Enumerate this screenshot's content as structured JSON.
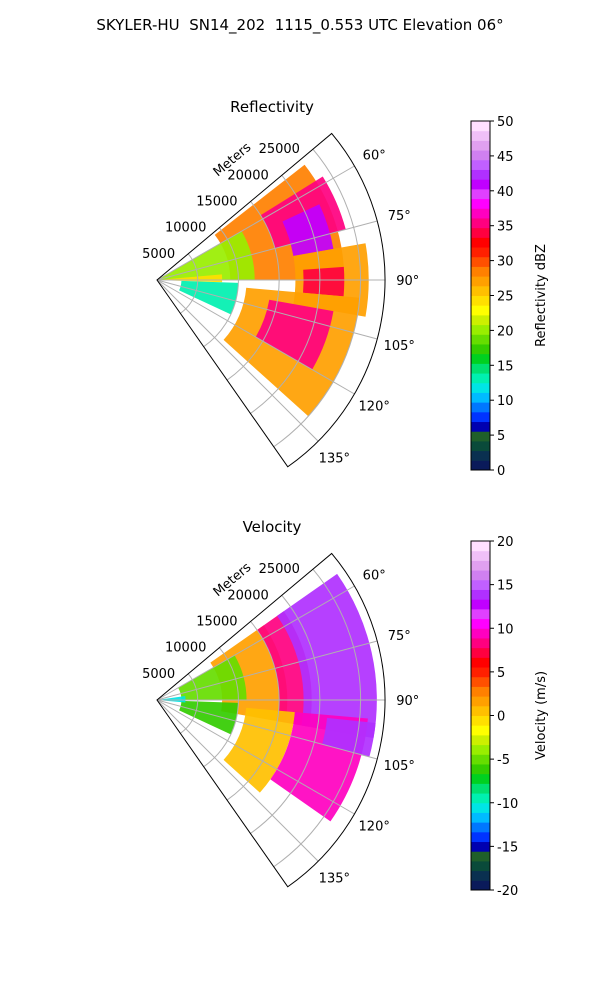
{
  "figure": {
    "title": "SKYLER-HU  SN14_202  1115_0.553 UTC Elevation 06°"
  },
  "chart_data": [
    {
      "type": "heatmap",
      "projection": "polar-sector",
      "title": "Reflectivity",
      "range_label": "Meters",
      "range_ticks": [
        5000,
        10000,
        15000,
        20000,
        25000
      ],
      "range_lim": [
        0,
        28000
      ],
      "azimuth_lim": [
        50,
        145
      ],
      "azimuth_ticks": [
        "60°",
        "75°",
        "90°",
        "105°",
        "120°",
        "135°"
      ],
      "azimuth_tick_values": [
        60,
        75,
        90,
        105,
        120,
        135
      ],
      "grid": true,
      "colorbar": {
        "label": "Reflectivity dBZ",
        "min": 0,
        "max": 50,
        "ticks": [
          0,
          5,
          10,
          15,
          20,
          25,
          30,
          35,
          40,
          45,
          50
        ],
        "colors": [
          "#0a1a5a",
          "#0a3050",
          "#0a4a3a",
          "#1f5f2a",
          "#0000b0",
          "#0033ff",
          "#0077ff",
          "#00bbff",
          "#00e5e5",
          "#00f0b0",
          "#00e070",
          "#00d020",
          "#33cc00",
          "#66dd00",
          "#99ee00",
          "#ccf000",
          "#ffff00",
          "#ffe000",
          "#ffc000",
          "#ffa000",
          "#ff8000",
          "#ff5000",
          "#ff2000",
          "#ff0000",
          "#ff0040",
          "#ff0080",
          "#ff00c0",
          "#ff00ff",
          "#e040ff",
          "#c000ff",
          "#b030ff",
          "#c060ff",
          "#d080f0",
          "#e0a0f0",
          "#f0c0f8",
          "#ffe0ff"
        ]
      },
      "cells": [
        {
          "az_min": 52,
          "az_max": 90,
          "r_min": 9000,
          "r_max": 23000,
          "value": 28
        },
        {
          "az_min": 58,
          "az_max": 75,
          "r_min": 15000,
          "r_max": 24000,
          "value": 36
        },
        {
          "az_min": 65,
          "az_max": 80,
          "r_min": 17000,
          "r_max": 22000,
          "value": 41
        },
        {
          "az_min": 80,
          "az_max": 100,
          "r_min": 17000,
          "r_max": 26000,
          "value": 27
        },
        {
          "az_min": 86,
          "az_max": 95,
          "r_min": 18000,
          "r_max": 23000,
          "value": 34
        },
        {
          "az_min": 95,
          "az_max": 132,
          "r_min": 11000,
          "r_max": 25000,
          "value": 27
        },
        {
          "az_min": 100,
          "az_max": 120,
          "r_min": 14000,
          "r_max": 22000,
          "value": 36
        },
        {
          "az_min": 60,
          "az_max": 90,
          "r_min": 0,
          "r_max": 12000,
          "value": 20
        },
        {
          "az_min": 85,
          "az_max": 92,
          "r_min": 0,
          "r_max": 8000,
          "value": 24
        },
        {
          "az_min": 92,
          "az_max": 115,
          "r_min": 3000,
          "r_max": 10000,
          "value": 13
        }
      ]
    },
    {
      "type": "heatmap",
      "projection": "polar-sector",
      "title": "Velocity",
      "range_label": "Meters",
      "range_ticks": [
        5000,
        10000,
        15000,
        20000,
        25000
      ],
      "range_lim": [
        0,
        28000
      ],
      "azimuth_lim": [
        50,
        145
      ],
      "azimuth_ticks": [
        "60°",
        "75°",
        "90°",
        "105°",
        "120°",
        "135°"
      ],
      "azimuth_tick_values": [
        60,
        75,
        90,
        105,
        120,
        135
      ],
      "grid": true,
      "colorbar": {
        "label": "Velocity (m/s)",
        "min": -20,
        "max": 20,
        "ticks": [
          -20,
          -15,
          -10,
          -5,
          0,
          5,
          10,
          15,
          20
        ],
        "colors": [
          "#0a1a5a",
          "#0a3050",
          "#0a4a3a",
          "#1f5f2a",
          "#0000b0",
          "#0033ff",
          "#0077ff",
          "#00bbff",
          "#00e5e5",
          "#00f0b0",
          "#00e070",
          "#00d020",
          "#33cc00",
          "#66dd00",
          "#99ee00",
          "#ccf000",
          "#ffff00",
          "#ffe000",
          "#ffc000",
          "#ffa000",
          "#ff8000",
          "#ff5000",
          "#ff2000",
          "#ff0000",
          "#ff0040",
          "#ff0080",
          "#ff00c0",
          "#ff00ff",
          "#e040ff",
          "#c000ff",
          "#b030ff",
          "#c060ff",
          "#d080f0",
          "#e0a0f0",
          "#f0c0f8",
          "#ffe0ff"
        ]
      },
      "cells": [
        {
          "az_min": 55,
          "az_max": 100,
          "r_min": 8000,
          "r_max": 16000,
          "value": 2
        },
        {
          "az_min": 55,
          "az_max": 100,
          "r_min": 15000,
          "r_max": 19000,
          "value": 8
        },
        {
          "az_min": 55,
          "az_max": 100,
          "r_min": 18000,
          "r_max": 27000,
          "value": 14
        },
        {
          "az_min": 95,
          "az_max": 132,
          "r_min": 11000,
          "r_max": 17000,
          "value": 1
        },
        {
          "az_min": 95,
          "az_max": 125,
          "r_min": 17000,
          "r_max": 26000,
          "value": 9
        },
        {
          "az_min": 96,
          "az_max": 105,
          "r_min": 21000,
          "r_max": 27000,
          "value": 14
        },
        {
          "az_min": 60,
          "az_max": 90,
          "r_min": 3000,
          "r_max": 11000,
          "value": -5
        },
        {
          "az_min": 92,
          "az_max": 115,
          "r_min": 3000,
          "r_max": 10000,
          "value": -6
        },
        {
          "az_min": 82,
          "az_max": 95,
          "r_min": 0,
          "r_max": 3500,
          "value": -11
        }
      ]
    }
  ]
}
